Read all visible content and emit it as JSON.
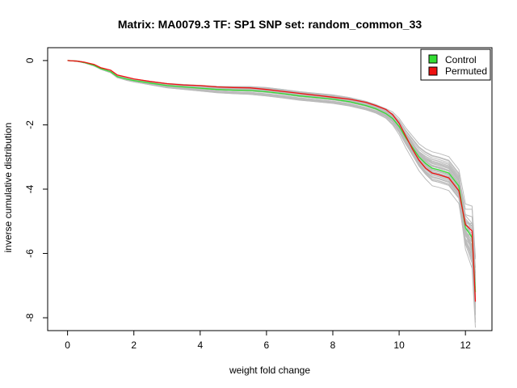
{
  "chart_data": {
    "type": "line",
    "title": "Matrix: MA0079.3 TF: SP1 SNP set: random_common_33",
    "xlabel": "weight fold change",
    "ylabel": "inverse cumulative distribution",
    "xlim": [
      -0.6,
      12.8
    ],
    "ylim": [
      -8.4,
      0.4
    ],
    "x_ticks": [
      0,
      2,
      4,
      6,
      8,
      10,
      12
    ],
    "y_ticks": [
      0,
      -2,
      -4,
      -6,
      -8
    ],
    "x_tick_labels": [
      "0",
      "2",
      "4",
      "6",
      "8",
      "10",
      "12"
    ],
    "y_tick_labels": [
      "0",
      "-2",
      "-4",
      "-6",
      "-8"
    ],
    "grid": false,
    "legend_position": "top-right",
    "legend": [
      {
        "label": "Control",
        "color": "#33dd33"
      },
      {
        "label": "Permuted",
        "color": "#ee1111"
      }
    ],
    "background_series_color": "#bbbbbb",
    "background_series_count": 40,
    "series": [
      {
        "name": "Control",
        "color": "#33dd33",
        "x": [
          0,
          0.3,
          0.5,
          0.8,
          1.0,
          1.3,
          1.5,
          1.8,
          2.0,
          2.5,
          3.0,
          3.5,
          4.0,
          4.5,
          5.0,
          5.5,
          6.0,
          6.5,
          7.0,
          7.5,
          8.0,
          8.5,
          9.0,
          9.3,
          9.6,
          9.8,
          10.0,
          10.2,
          10.4,
          10.6,
          10.8,
          11.0,
          11.2,
          11.5,
          11.8,
          12.0,
          12.1,
          12.2,
          12.3
        ],
        "y": [
          0,
          -0.02,
          -0.06,
          -0.15,
          -0.25,
          -0.35,
          -0.5,
          -0.58,
          -0.62,
          -0.7,
          -0.78,
          -0.82,
          -0.86,
          -0.9,
          -0.92,
          -0.93,
          -0.97,
          -1.03,
          -1.1,
          -1.15,
          -1.2,
          -1.28,
          -1.4,
          -1.5,
          -1.65,
          -1.8,
          -2.05,
          -2.4,
          -2.7,
          -3.0,
          -3.2,
          -3.35,
          -3.4,
          -3.5,
          -3.9,
          -5.2,
          -5.35,
          -5.5,
          -7.2
        ]
      },
      {
        "name": "Permuted",
        "color": "#ee1111",
        "x": [
          0,
          0.3,
          0.5,
          0.8,
          1.0,
          1.3,
          1.5,
          1.8,
          2.0,
          2.5,
          3.0,
          3.5,
          4.0,
          4.5,
          5.0,
          5.5,
          6.0,
          6.5,
          7.0,
          7.5,
          8.0,
          8.5,
          9.0,
          9.3,
          9.6,
          9.8,
          10.0,
          10.2,
          10.4,
          10.6,
          10.8,
          11.0,
          11.2,
          11.5,
          11.8,
          12.0,
          12.1,
          12.2,
          12.3
        ],
        "y": [
          0,
          -0.02,
          -0.05,
          -0.12,
          -0.22,
          -0.3,
          -0.45,
          -0.52,
          -0.57,
          -0.65,
          -0.72,
          -0.76,
          -0.78,
          -0.82,
          -0.84,
          -0.85,
          -0.9,
          -0.96,
          -1.02,
          -1.08,
          -1.14,
          -1.2,
          -1.3,
          -1.4,
          -1.52,
          -1.68,
          -1.95,
          -2.35,
          -2.75,
          -3.1,
          -3.35,
          -3.5,
          -3.55,
          -3.65,
          -4.05,
          -5.1,
          -5.2,
          -5.3,
          -7.5
        ]
      }
    ]
  }
}
